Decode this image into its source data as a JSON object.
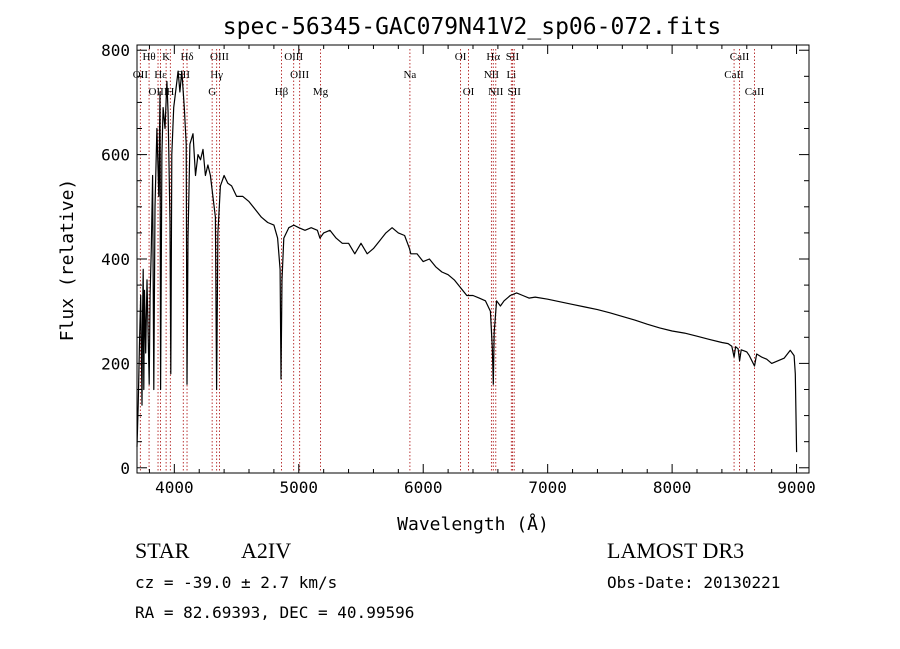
{
  "chart_data": {
    "type": "line",
    "title": "spec-56345-GAC079N41V2_sp06-072.fits",
    "xlabel": "Wavelength (Å)",
    "ylabel": "Flux (relative)",
    "xlim": [
      3700,
      9100
    ],
    "ylim": [
      -10,
      810
    ],
    "x_ticks": [
      4000,
      5000,
      6000,
      7000,
      8000,
      9000
    ],
    "y_ticks": [
      0,
      200,
      400,
      600,
      800
    ],
    "grid": false,
    "series": [
      {
        "name": "spectrum",
        "points": [
          [
            3700,
            40
          ],
          [
            3710,
            120
          ],
          [
            3720,
            240
          ],
          [
            3730,
            330
          ],
          [
            3740,
            120
          ],
          [
            3745,
            300
          ],
          [
            3750,
            380
          ],
          [
            3755,
            150
          ],
          [
            3760,
            340
          ],
          [
            3770,
            220
          ],
          [
            3780,
            360
          ],
          [
            3790,
            250
          ],
          [
            3798,
            160
          ],
          [
            3805,
            330
          ],
          [
            3815,
            420
          ],
          [
            3825,
            560
          ],
          [
            3835,
            150
          ],
          [
            3845,
            500
          ],
          [
            3860,
            650
          ],
          [
            3875,
            520
          ],
          [
            3885,
            720
          ],
          [
            3890,
            150
          ],
          [
            3900,
            600
          ],
          [
            3910,
            690
          ],
          [
            3925,
            650
          ],
          [
            3940,
            740
          ],
          [
            3950,
            680
          ],
          [
            3965,
            470
          ],
          [
            3972,
            180
          ],
          [
            3980,
            600
          ],
          [
            3995,
            690
          ],
          [
            4010,
            720
          ],
          [
            4030,
            760
          ],
          [
            4045,
            720
          ],
          [
            4060,
            760
          ],
          [
            4080,
            690
          ],
          [
            4095,
            620
          ],
          [
            4102,
            160
          ],
          [
            4110,
            440
          ],
          [
            4125,
            620
          ],
          [
            4150,
            640
          ],
          [
            4170,
            560
          ],
          [
            4190,
            600
          ],
          [
            4210,
            590
          ],
          [
            4230,
            610
          ],
          [
            4250,
            560
          ],
          [
            4270,
            580
          ],
          [
            4290,
            560
          ],
          [
            4310,
            520
          ],
          [
            4330,
            480
          ],
          [
            4340,
            150
          ],
          [
            4350,
            450
          ],
          [
            4370,
            540
          ],
          [
            4400,
            560
          ],
          [
            4430,
            545
          ],
          [
            4460,
            540
          ],
          [
            4500,
            520
          ],
          [
            4550,
            520
          ],
          [
            4600,
            510
          ],
          [
            4650,
            495
          ],
          [
            4700,
            480
          ],
          [
            4750,
            470
          ],
          [
            4800,
            465
          ],
          [
            4830,
            440
          ],
          [
            4850,
            380
          ],
          [
            4857,
            170
          ],
          [
            4865,
            360
          ],
          [
            4880,
            440
          ],
          [
            4920,
            460
          ],
          [
            4960,
            465
          ],
          [
            5000,
            460
          ],
          [
            5050,
            455
          ],
          [
            5100,
            460
          ],
          [
            5150,
            455
          ],
          [
            5170,
            440
          ],
          [
            5200,
            450
          ],
          [
            5250,
            455
          ],
          [
            5300,
            440
          ],
          [
            5350,
            430
          ],
          [
            5400,
            430
          ],
          [
            5450,
            410
          ],
          [
            5500,
            430
          ],
          [
            5550,
            410
          ],
          [
            5600,
            420
          ],
          [
            5650,
            435
          ],
          [
            5700,
            450
          ],
          [
            5750,
            460
          ],
          [
            5800,
            450
          ],
          [
            5850,
            445
          ],
          [
            5890,
            420
          ],
          [
            5900,
            410
          ],
          [
            5950,
            410
          ],
          [
            6000,
            395
          ],
          [
            6050,
            400
          ],
          [
            6100,
            385
          ],
          [
            6150,
            375
          ],
          [
            6200,
            370
          ],
          [
            6250,
            360
          ],
          [
            6300,
            345
          ],
          [
            6350,
            330
          ],
          [
            6400,
            330
          ],
          [
            6450,
            325
          ],
          [
            6500,
            320
          ],
          [
            6540,
            300
          ],
          [
            6555,
            230
          ],
          [
            6563,
            160
          ],
          [
            6570,
            260
          ],
          [
            6590,
            320
          ],
          [
            6620,
            310
          ],
          [
            6650,
            320
          ],
          [
            6700,
            330
          ],
          [
            6750,
            335
          ],
          [
            6800,
            330
          ],
          [
            6850,
            325
          ],
          [
            6900,
            327
          ],
          [
            7000,
            323
          ],
          [
            7100,
            318
          ],
          [
            7200,
            313
          ],
          [
            7300,
            308
          ],
          [
            7400,
            303
          ],
          [
            7500,
            297
          ],
          [
            7600,
            290
          ],
          [
            7700,
            283
          ],
          [
            7800,
            275
          ],
          [
            7900,
            268
          ],
          [
            8000,
            262
          ],
          [
            8100,
            258
          ],
          [
            8200,
            252
          ],
          [
            8300,
            246
          ],
          [
            8400,
            240
          ],
          [
            8450,
            238
          ],
          [
            8480,
            233
          ],
          [
            8498,
            212
          ],
          [
            8510,
            232
          ],
          [
            8530,
            228
          ],
          [
            8542,
            205
          ],
          [
            8555,
            226
          ],
          [
            8580,
            224
          ],
          [
            8600,
            222
          ],
          [
            8620,
            215
          ],
          [
            8662,
            195
          ],
          [
            8680,
            218
          ],
          [
            8720,
            212
          ],
          [
            8760,
            208
          ],
          [
            8800,
            200
          ],
          [
            8850,
            205
          ],
          [
            8900,
            210
          ],
          [
            8950,
            225
          ],
          [
            8980,
            215
          ],
          [
            8990,
            180
          ],
          [
            9000,
            30
          ]
        ]
      }
    ],
    "line_markers": {
      "row1": [
        {
          "label": "Hθ",
          "x": 3797
        },
        {
          "label": "K",
          "x": 3934
        },
        {
          "label": "Hδ",
          "x": 4102
        },
        {
          "label": "OIII",
          "x": 4363
        },
        {
          "label": "OIII",
          "x": 4959
        },
        {
          "label": "OI",
          "x": 6300
        },
        {
          "label": "Hα",
          "x": 6563
        },
        {
          "label": "SII",
          "x": 6717
        },
        {
          "label": "CaII",
          "x": 8542
        }
      ],
      "row2": [
        {
          "label": "OII",
          "x": 3727
        },
        {
          "label": "Hε",
          "x": 3889
        },
        {
          "label": "SII",
          "x": 4072
        },
        {
          "label": "Hγ",
          "x": 4340
        },
        {
          "label": "OIII",
          "x": 5007
        },
        {
          "label": "Na",
          "x": 5893
        },
        {
          "label": "NII",
          "x": 6548
        },
        {
          "label": "Li",
          "x": 6708
        },
        {
          "label": "CaII",
          "x": 8498
        }
      ],
      "row3": [
        {
          "label": "OIII",
          "x": 3869
        },
        {
          "label": "H",
          "x": 3968
        },
        {
          "label": "G",
          "x": 4304
        },
        {
          "label": "Hβ",
          "x": 4861
        },
        {
          "label": "Mg",
          "x": 5175
        },
        {
          "label": "OI",
          "x": 6364
        },
        {
          "label": "NII",
          "x": 6583
        },
        {
          "label": "SII",
          "x": 6731
        },
        {
          "label": "CaII",
          "x": 8662
        }
      ],
      "color": "#b22222"
    }
  },
  "info": {
    "object_class": "STAR",
    "subclass": "A2IV",
    "survey": "LAMOST DR3",
    "cz": "cz = -39.0 ± 2.7 km/s",
    "obs_date": "Obs-Date: 20130221",
    "coords": "RA =  82.69393, DEC =  40.99596"
  }
}
